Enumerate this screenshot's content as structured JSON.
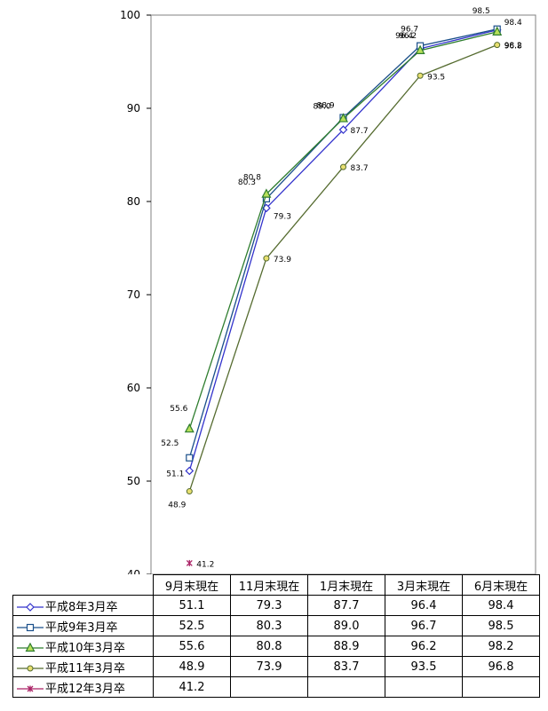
{
  "chart_data": {
    "type": "line",
    "categories": [
      "9月末現在",
      "11月末現在",
      "1月末現在",
      "3月末現在",
      "6月末現在"
    ],
    "ylim": [
      40,
      100
    ],
    "yticks": [
      "40",
      "50",
      "60",
      "70",
      "80",
      "90",
      "100"
    ],
    "grid": false,
    "legend": "data-table",
    "series": [
      {
        "name": "平成8年3月卒",
        "marker": "diamond",
        "color": "#3333cc",
        "values": [
          51.1,
          79.3,
          87.7,
          96.4,
          98.4
        ],
        "labels": [
          "51.1",
          "79.3",
          "87.7",
          "96.4",
          "98.4"
        ]
      },
      {
        "name": "平成9年3月卒",
        "marker": "square",
        "color": "#1a4f8a",
        "values": [
          52.5,
          80.3,
          89.0,
          96.7,
          98.5
        ],
        "labels": [
          "52.5",
          "80.3",
          "89.0",
          "96.7",
          "98.5"
        ]
      },
      {
        "name": "平成10年3月卒",
        "marker": "triangle",
        "color": "#2e7d2e",
        "values": [
          55.6,
          80.8,
          88.9,
          96.2,
          98.2
        ],
        "labels": [
          "55.6",
          "80.8",
          "88.9",
          "96.2",
          "98.2"
        ]
      },
      {
        "name": "平成11年3月卒",
        "marker": "circle",
        "color": "#556b2f",
        "values": [
          48.9,
          73.9,
          83.7,
          93.5,
          96.8
        ],
        "labels": [
          "48.9",
          "73.9",
          "83.7",
          "93.5",
          "96.8"
        ]
      },
      {
        "name": "平成12年3月卒",
        "marker": "star",
        "color": "#aa2266",
        "values": [
          41.2,
          null,
          null,
          null,
          null
        ],
        "labels": [
          "41.2",
          "",
          "",
          "",
          ""
        ]
      }
    ]
  }
}
